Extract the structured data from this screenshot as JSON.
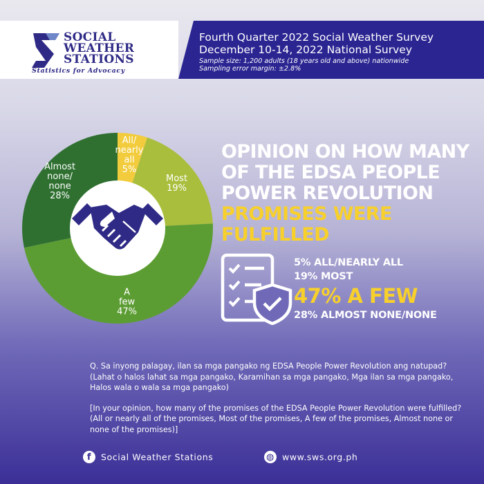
{
  "brand": {
    "name_lines": [
      "SOCIAL",
      "WEATHER",
      "STATIONS"
    ],
    "tagline": "Statistics for Advocacy"
  },
  "header": {
    "title_line1": "Fourth Quarter 2022 Social Weather Survey",
    "title_line2": "December 10-14, 2022 National Survey",
    "sample": "Sample size: 1,200 adults (18 years old and above) nationwide",
    "error_margin": "Sampling error margin: ±2.8%"
  },
  "headline": {
    "white_lines": [
      "OPINION ON HOW MANY",
      "OF THE EDSA PEOPLE",
      "POWER REVOLUTION"
    ],
    "yellow_lines": [
      "PROMISES WERE",
      "FULFILLED"
    ]
  },
  "results": {
    "line1": "5% ALL/NEARLY ALL",
    "line2": "19% MOST",
    "line3": "47% A FEW",
    "line4": "28% ALMOST NONE/NONE"
  },
  "chart_data": {
    "type": "pie",
    "donut": true,
    "start_angle_deg": 0,
    "categories": [
      "All/ nearly all",
      "Most",
      "A few",
      "Almost none/ none"
    ],
    "values": [
      5,
      19,
      47,
      28
    ],
    "unit": "%",
    "colors": [
      "#f2cc3d",
      "#a9be3c",
      "#5c9d33",
      "#2f7031"
    ],
    "label_colors": [
      "#ffffff",
      "#ffffff",
      "#ffffff",
      "#ffffff"
    ]
  },
  "question": {
    "tagalog": "Q. Sa inyong palagay, ilan sa mga pangako ng EDSA People Power Revolution ang natupad? (Lahat o halos lahat sa mga pangako, Karamihan sa mga pangako, Mga ilan sa mga pangako, Halos wala o wala sa mga pangako)",
    "english": "[In your opinion, how many of the promises of the EDSA People Power Revolution were fulfilled? (All or nearly all of the promises, Most of the promises, A few of the promises, Almost none or none of the promises)]"
  },
  "footer": {
    "facebook": "Social Weather Stations",
    "website": "www.sws.org.ph",
    "facebook_icon": "facebook-icon",
    "web_icon": "globe-icon"
  }
}
